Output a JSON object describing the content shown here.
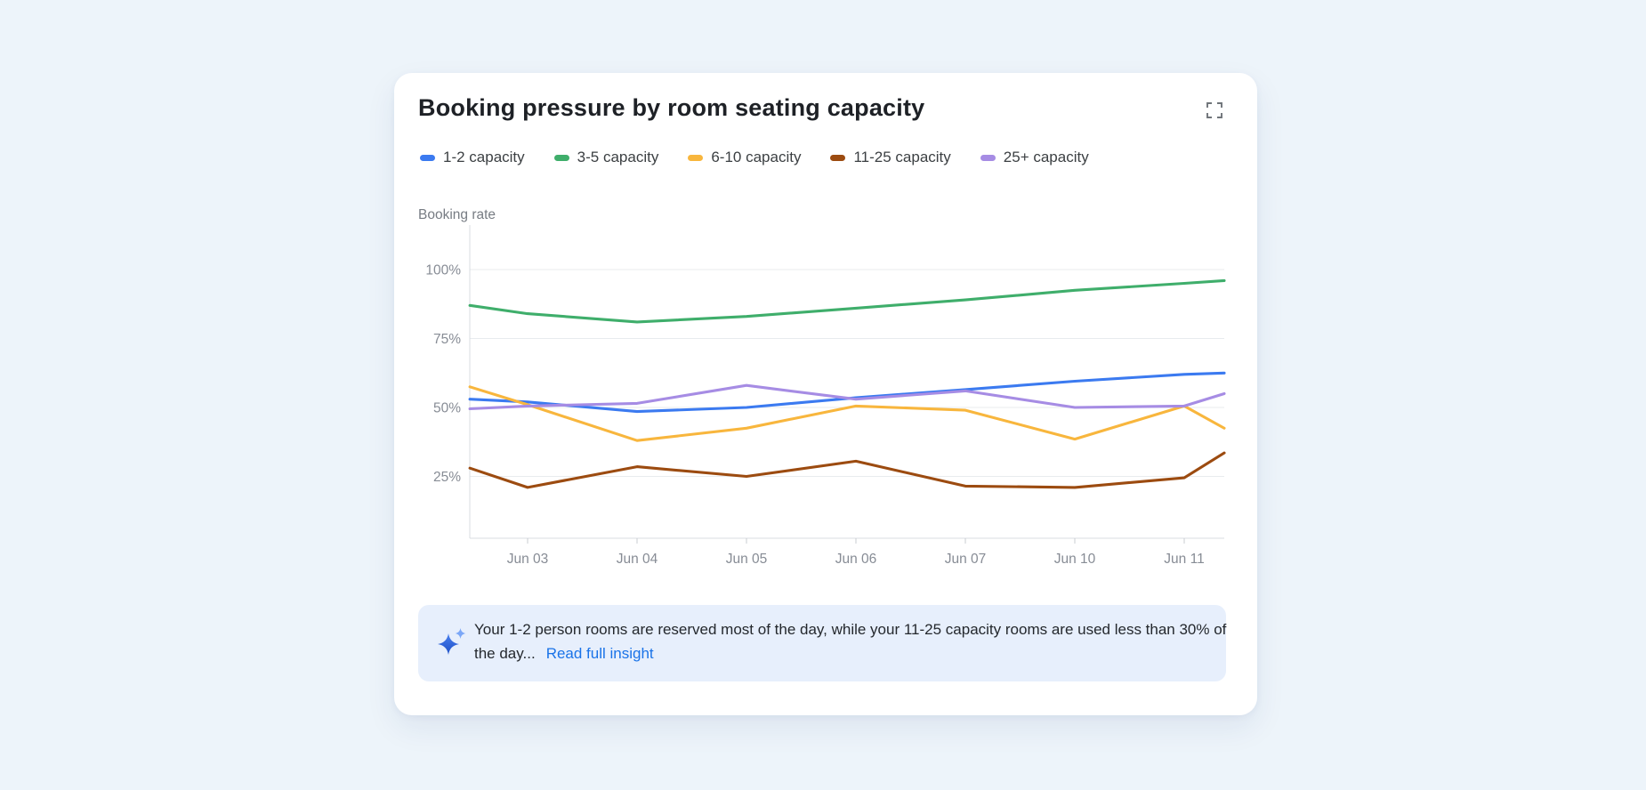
{
  "card": {
    "title": "Booking pressure by room seating capacity"
  },
  "chart_data": {
    "type": "line",
    "title": "Booking pressure by room seating capacity",
    "y_axis_title": "Booking rate",
    "xlabel": "",
    "ylabel": "Booking rate",
    "ylim": [
      0,
      115
    ],
    "grid": "horizontal-only",
    "legend_position": "top",
    "y_tick_values": [
      100,
      75,
      50,
      25
    ],
    "y_tick_labels": [
      "100%",
      "75%",
      "50%",
      "25%"
    ],
    "categories": [
      "Jun 03",
      "Jun 04",
      "Jun 05",
      "Jun 06",
      "Jun 07",
      "Jun 10",
      "Jun 11"
    ],
    "x_positions": [
      -0.528,
      0,
      1,
      2,
      3,
      4,
      5,
      6,
      6.366
    ],
    "series": [
      {
        "name": "1-2 capacity",
        "color": "#3b7af0",
        "values": [
          53,
          52,
          48.5,
          50,
          53.5,
          56.5,
          59.5,
          62,
          62.5
        ]
      },
      {
        "name": "3-5 capacity",
        "color": "#3fae6b",
        "values": [
          87,
          84,
          81,
          83,
          86,
          89,
          92.5,
          95,
          96
        ]
      },
      {
        "name": "6-10 capacity",
        "color": "#f8b63d",
        "values": [
          57.5,
          51,
          38,
          42.5,
          50.5,
          49,
          38.5,
          50.5,
          42.5
        ]
      },
      {
        "name": "11-25 capacity",
        "color": "#9c4b10",
        "values": [
          28,
          21,
          28.5,
          25,
          30.5,
          21.5,
          21,
          24.5,
          33.5
        ]
      },
      {
        "name": "25+ capacity",
        "color": "#a68ce4",
        "values": [
          49.5,
          50.5,
          51.5,
          58,
          53,
          56,
          50,
          50.5,
          55
        ]
      }
    ]
  },
  "insight": {
    "text": "Your 1-2 person rooms are reserved most of the day, while your 11-25 capacity rooms are used less than 30% of the day...",
    "link_label": "Read full insight"
  },
  "colors": {
    "background": "#edf4fa",
    "card": "#ffffff",
    "insight_bg": "#e7effc",
    "link": "#1a73e8",
    "title_text": "#1e2126",
    "legend_text": "#3c4043",
    "axis_text": "#878c95",
    "gridline": "#e8ebee",
    "axis_line": "#d9dce0"
  }
}
